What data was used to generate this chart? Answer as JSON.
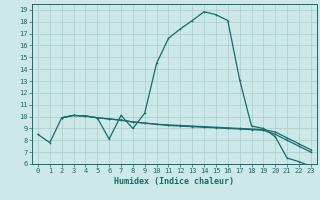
{
  "xlabel": "Humidex (Indice chaleur)",
  "bg_color": "#cce8e8",
  "grid_color": "#aacccc",
  "line_color": "#1a6b6b",
  "xlim": [
    -0.5,
    23.5
  ],
  "ylim": [
    6,
    19.5
  ],
  "xticks": [
    0,
    1,
    2,
    3,
    4,
    5,
    6,
    7,
    8,
    9,
    10,
    11,
    12,
    13,
    14,
    15,
    16,
    17,
    18,
    19,
    20,
    21,
    22,
    23
  ],
  "yticks": [
    6,
    7,
    8,
    9,
    10,
    11,
    12,
    13,
    14,
    15,
    16,
    17,
    18,
    19
  ],
  "curve1_x": [
    0,
    1,
    2,
    3,
    4,
    5,
    6,
    7,
    8,
    9,
    10,
    11,
    12,
    13,
    14,
    15,
    16,
    17,
    18,
    19,
    20,
    21,
    22,
    23
  ],
  "curve1_y": [
    8.5,
    7.8,
    9.9,
    10.1,
    10.05,
    9.9,
    8.1,
    10.1,
    9.0,
    10.3,
    14.5,
    16.6,
    17.4,
    18.1,
    18.85,
    18.6,
    18.1,
    13.1,
    9.2,
    9.0,
    8.3,
    6.5,
    6.2,
    5.8
  ],
  "curve2_x": [
    2,
    3,
    4,
    5,
    6,
    7,
    8,
    9,
    10,
    11,
    12,
    13,
    14,
    15,
    16,
    17,
    18,
    19,
    20,
    21,
    22,
    23
  ],
  "curve2_y": [
    9.9,
    10.1,
    10.05,
    9.9,
    9.8,
    9.7,
    9.55,
    9.45,
    9.35,
    9.25,
    9.2,
    9.15,
    9.1,
    9.05,
    9.0,
    8.95,
    8.9,
    8.85,
    8.5,
    8.0,
    7.5,
    7.0
  ],
  "curve3_x": [
    2,
    3,
    4,
    5,
    6,
    7,
    8,
    9,
    10,
    11,
    12,
    13,
    14,
    15,
    16,
    17,
    18,
    19,
    20,
    21,
    22,
    23
  ],
  "curve3_y": [
    9.9,
    10.1,
    10.05,
    9.9,
    9.8,
    9.7,
    9.55,
    9.45,
    9.35,
    9.3,
    9.25,
    9.2,
    9.15,
    9.1,
    9.05,
    9.0,
    8.95,
    8.9,
    8.7,
    8.2,
    7.7,
    7.2
  ]
}
